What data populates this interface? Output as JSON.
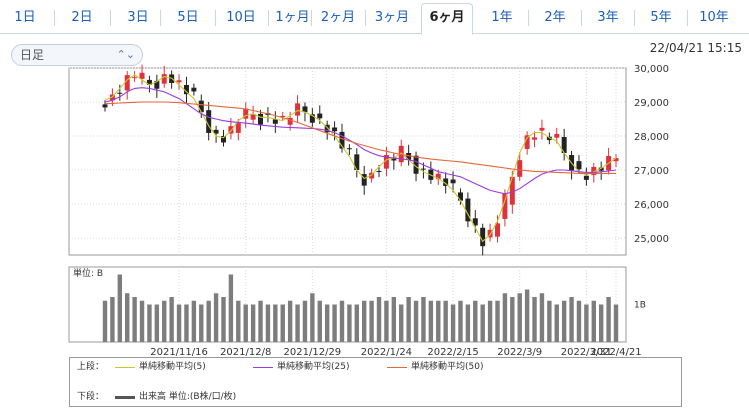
{
  "tabs": [
    {
      "label": "1日",
      "active": false
    },
    {
      "label": "2日",
      "active": false
    },
    {
      "label": "3日",
      "active": false
    },
    {
      "label": "5日",
      "active": false
    },
    {
      "label": "10日",
      "active": false
    },
    {
      "label": "1ヶ月",
      "active": false
    },
    {
      "label": "2ヶ月",
      "active": false
    },
    {
      "label": "3ヶ月",
      "active": false
    },
    {
      "label": "6ヶ月",
      "active": true
    },
    {
      "label": "1年",
      "active": false
    },
    {
      "label": "2年",
      "active": false
    },
    {
      "label": "3年",
      "active": false
    },
    {
      "label": "5年",
      "active": false
    },
    {
      "label": "10年",
      "active": false
    }
  ],
  "period_select": {
    "value": "日足"
  },
  "datetime": "22/04/21 15:15",
  "legend": {
    "upper_label": "上段：",
    "lower_label": "下段：",
    "ma5": "単純移動平均(5)",
    "ma25": "単純移動平均(25)",
    "ma50": "単純移動平均(50)",
    "volume": "出来高 単位:(B株/口/枚)"
  },
  "colors": {
    "up": "#e0323c",
    "down": "#232323",
    "ma5": "#c8c832",
    "ma25": "#9a3ae0",
    "ma50": "#e06a3a",
    "volume": "#7d7d7d",
    "accent": "#1a5fb4"
  },
  "chart_data": [
    {
      "type": "candlestick",
      "ylim": [
        24500,
        30000
      ],
      "yticks": [
        "30,000",
        "29,000",
        "28,000",
        "27,000",
        "26,000",
        "25,000"
      ],
      "ytick_values": [
        30000,
        29000,
        28000,
        27000,
        26000,
        25000
      ],
      "xticks": [
        "2021/11/16",
        "2021/12/8",
        "2021/12/29",
        "2022/1/24",
        "2022/2/15",
        "2022/3/9",
        "2022/3/31",
        "2022/4/21"
      ],
      "grid": true,
      "series": [
        {
          "name": "単純移動平均(5)",
          "values": [
            29050,
            29150,
            29400,
            29650,
            29800,
            29650,
            29500,
            29600,
            29750,
            29700,
            29500,
            29300,
            29100,
            28700,
            28300,
            28000,
            27950,
            28150,
            28450,
            28600,
            28650,
            28550,
            28550,
            28500,
            28450,
            28600,
            28750,
            28700,
            28600,
            28450,
            28250,
            28000,
            27700,
            27400,
            27000,
            26750,
            26850,
            27100,
            27300,
            27350,
            27500,
            27300,
            27100,
            26950,
            26850,
            26750,
            26600,
            26400,
            26100,
            25700,
            25300,
            24900,
            25100,
            25500,
            26100,
            26800,
            27500,
            27950,
            28100,
            28100,
            27950,
            27850,
            27500,
            27200,
            26950,
            26850,
            26950,
            27050,
            27200,
            27350
          ]
        },
        {
          "name": "単純移動平均(25)",
          "values": [
            29000,
            29050,
            29150,
            29300,
            29400,
            29420,
            29400,
            29350,
            29300,
            29200,
            29100,
            28950,
            28800,
            28650,
            28550,
            28500,
            28450,
            28420,
            28400,
            28380,
            28350,
            28320,
            28300,
            28280,
            28260,
            28250,
            28240,
            28230,
            28220,
            28200,
            28160,
            28100,
            28000,
            27880,
            27750,
            27600,
            27500,
            27420,
            27380,
            27350,
            27330,
            27300,
            27250,
            27150,
            27050,
            26950,
            26900,
            26850,
            26800,
            26700,
            26600,
            26500,
            26400,
            26350,
            26300,
            26350,
            26450,
            26600,
            26750,
            26880,
            26950,
            27000,
            27000,
            26980,
            26950,
            26930,
            26930,
            26950,
            26970,
            27000
          ]
        },
        {
          "name": "単純移動平均(50)",
          "values": [
            28950,
            28960,
            28970,
            28980,
            28990,
            29000,
            29000,
            29000,
            29000,
            28990,
            28980,
            28960,
            28940,
            28920,
            28900,
            28880,
            28860,
            28840,
            28820,
            28790,
            28750,
            28700,
            28650,
            28600,
            28540,
            28470,
            28400,
            28320,
            28240,
            28160,
            28080,
            28000,
            27920,
            27850,
            27780,
            27720,
            27660,
            27600,
            27550,
            27500,
            27460,
            27420,
            27380,
            27350,
            27320,
            27300,
            27280,
            27260,
            27240,
            27210,
            27180,
            27150,
            27120,
            27090,
            27060,
            27030,
            27000,
            26980,
            26960,
            26950,
            26940,
            26930,
            26920,
            26910,
            26900,
            26900,
            26900,
            26900,
            26900,
            26900
          ]
        }
      ]
    },
    {
      "type": "bar",
      "ylabel": "単位: B",
      "ytick_label": "1B",
      "ylim": [
        0,
        2
      ],
      "values": [
        1.1,
        1.2,
        1.8,
        1.3,
        1.2,
        1.1,
        1.0,
        1.0,
        1.1,
        1.2,
        1.0,
        1.0,
        1.1,
        1.0,
        1.1,
        1.3,
        1.2,
        1.8,
        1.1,
        1.0,
        1.0,
        1.1,
        1.0,
        1.0,
        1.0,
        1.1,
        1.0,
        1.1,
        1.3,
        1.1,
        1.0,
        1.0,
        1.1,
        1.0,
        1.0,
        1.1,
        1.1,
        1.2,
        1.1,
        1.2,
        1.0,
        1.2,
        1.1,
        1.2,
        1.1,
        1.1,
        1.1,
        1.0,
        1.1,
        1.0,
        1.1,
        1.0,
        1.1,
        1.1,
        1.3,
        1.2,
        1.3,
        1.4,
        1.2,
        1.3,
        1.1,
        1.0,
        1.1,
        1.2,
        1.1,
        1.0,
        1.1,
        1.0,
        1.2,
        1.0
      ]
    }
  ]
}
